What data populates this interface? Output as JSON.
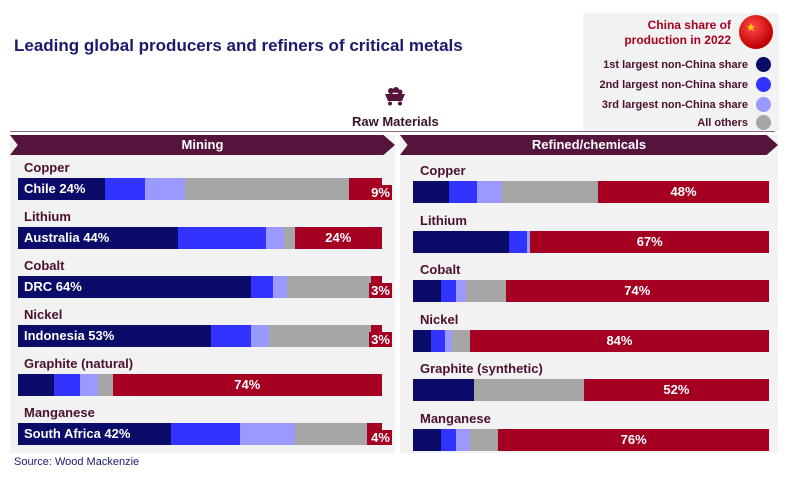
{
  "title": "Leading global producers and refiners of critical metals",
  "legend": {
    "china": "China share of production in 2022",
    "items": [
      {
        "label": "1st largest non-China share",
        "color": "#0b0b6a"
      },
      {
        "label": "2nd largest non-China share",
        "color": "#3333ff"
      },
      {
        "label": "3rd largest non-China share",
        "color": "#9999ff"
      },
      {
        "label": "All others",
        "color": "#a6a6a6"
      }
    ],
    "china_color": "#a50021"
  },
  "section_label": "Raw Materials",
  "source": "Source: Wood Mackenzie",
  "chart_data": [
    {
      "type": "bar",
      "stacked": true,
      "orientation": "horizontal",
      "title": "Mining",
      "series_order": [
        "1st",
        "2nd",
        "3rd",
        "others",
        "China"
      ],
      "categories": [
        "Copper",
        "Lithium",
        "Cobalt",
        "Nickel",
        "Graphite (natural)",
        "Manganese"
      ],
      "rows": [
        {
          "name": "Copper",
          "first_label": "Chile 24%",
          "values": [
            24,
            11,
            11,
            45,
            9
          ],
          "china_label": "9%"
        },
        {
          "name": "Lithium",
          "first_label": "Australia 44%",
          "values": [
            44,
            24,
            5,
            3,
            24
          ],
          "china_label": "24%"
        },
        {
          "name": "Cobalt",
          "first_label": "DRC 64%",
          "values": [
            64,
            6,
            4,
            23,
            3
          ],
          "china_label": "3%"
        },
        {
          "name": "Nickel",
          "first_label": "Indonesia 53%",
          "values": [
            53,
            11,
            5,
            28,
            3
          ],
          "china_label": "3%"
        },
        {
          "name": "Graphite (natural)",
          "first_label": "",
          "values": [
            10,
            7,
            5,
            4,
            74
          ],
          "china_label": "74%"
        },
        {
          "name": "Manganese",
          "first_label": "South Africa 42%",
          "values": [
            42,
            19,
            15,
            20,
            4
          ],
          "china_label": "4%"
        }
      ]
    },
    {
      "type": "bar",
      "stacked": true,
      "orientation": "horizontal",
      "title": "Refined/chemicals",
      "series_order": [
        "1st",
        "2nd",
        "3rd",
        "others",
        "China"
      ],
      "categories": [
        "Copper",
        "Lithium",
        "Cobalt",
        "Nickel",
        "Graphite (synthetic)",
        "Manganese"
      ],
      "rows": [
        {
          "name": "Copper",
          "first_label": "",
          "values": [
            10,
            8,
            7,
            27,
            48
          ],
          "china_label": "48%"
        },
        {
          "name": "Lithium",
          "first_label": "",
          "values": [
            27,
            5,
            1,
            0,
            67
          ],
          "china_label": "67%"
        },
        {
          "name": "Cobalt",
          "first_label": "",
          "values": [
            8,
            4,
            3,
            11,
            74
          ],
          "china_label": "74%"
        },
        {
          "name": "Nickel",
          "first_label": "",
          "values": [
            5,
            4,
            2,
            5,
            84
          ],
          "china_label": "84%"
        },
        {
          "name": "Graphite (synthetic)",
          "first_label": "",
          "values": [
            17,
            0,
            0,
            31,
            52
          ],
          "china_label": "52%"
        },
        {
          "name": "Manganese",
          "first_label": "",
          "values": [
            8,
            4,
            4,
            8,
            76
          ],
          "china_label": "76%"
        }
      ]
    }
  ]
}
